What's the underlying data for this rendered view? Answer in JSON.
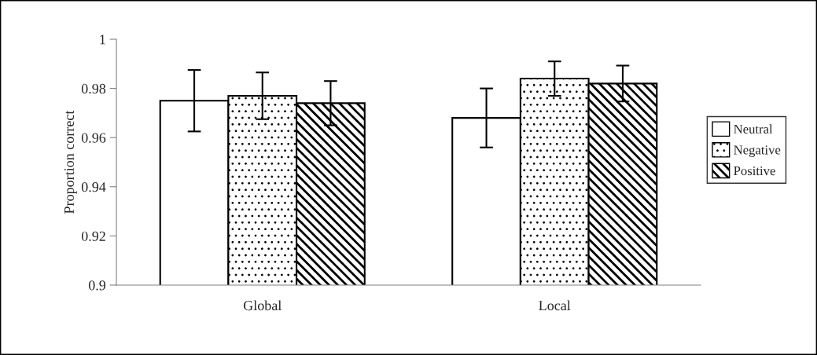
{
  "chart_data": {
    "type": "bar",
    "ylabel": "Proportion correct",
    "categories": [
      "Global",
      "Local"
    ],
    "series": [
      {
        "name": "Neutral",
        "color": "#ffffff",
        "values": [
          0.975,
          0.968
        ],
        "errors": [
          0.0125,
          0.012
        ]
      },
      {
        "name": "Negative",
        "color": "#000000",
        "values": [
          0.977,
          0.984
        ],
        "errors": [
          0.0095,
          0.007
        ]
      },
      {
        "name": "Positive",
        "color": "#000000",
        "values": [
          0.974,
          0.982
        ],
        "errors": [
          0.009,
          0.0073
        ]
      }
    ],
    "ylim": [
      0.9,
      1
    ],
    "yticks": [
      0.9,
      0.92,
      0.94,
      0.96,
      0.98,
      1
    ],
    "grid": false,
    "legend": "right"
  }
}
